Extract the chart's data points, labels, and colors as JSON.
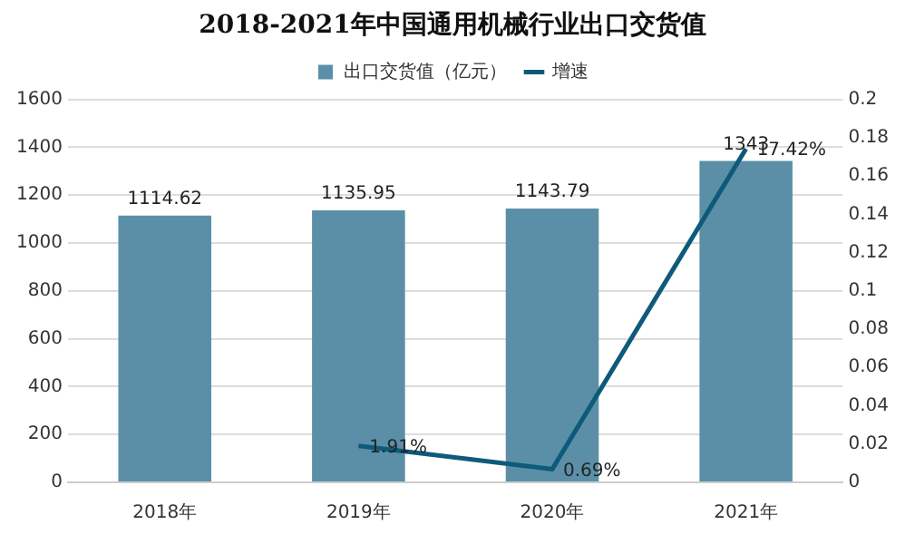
{
  "chart_data": {
    "type": "bar",
    "title": "2018-2021年中国通用机械行业出口交货值",
    "categories": [
      "2018年",
      "2019年",
      "2020年",
      "2021年"
    ],
    "series": [
      {
        "name": "出口交货值（亿元）",
        "color": "#5b8fa8",
        "values": [
          1114.62,
          1135.95,
          1143.79,
          1343
        ],
        "value_labels": [
          "1114.62",
          "1135.95",
          "1143.79",
          "1343"
        ]
      },
      {
        "name": "增速",
        "type": "line",
        "axis": "y2",
        "color": "#0e5a7a",
        "values": [
          null,
          0.0191,
          0.0069,
          0.1742
        ],
        "value_labels": [
          null,
          "1.91%",
          "0.69%",
          "17.42%"
        ]
      }
    ],
    "ylim": [
      0,
      1600
    ],
    "yticks": [
      0,
      200,
      400,
      600,
      800,
      1000,
      1200,
      1400,
      1600
    ],
    "y2lim": [
      0,
      0.2
    ],
    "y2ticks": [
      0,
      0.02,
      0.04,
      0.06,
      0.08,
      0.1,
      0.12,
      0.14,
      0.16,
      0.18,
      0.2
    ],
    "grid": "y",
    "legend": "top",
    "marker": "none",
    "line_style": "solid"
  }
}
